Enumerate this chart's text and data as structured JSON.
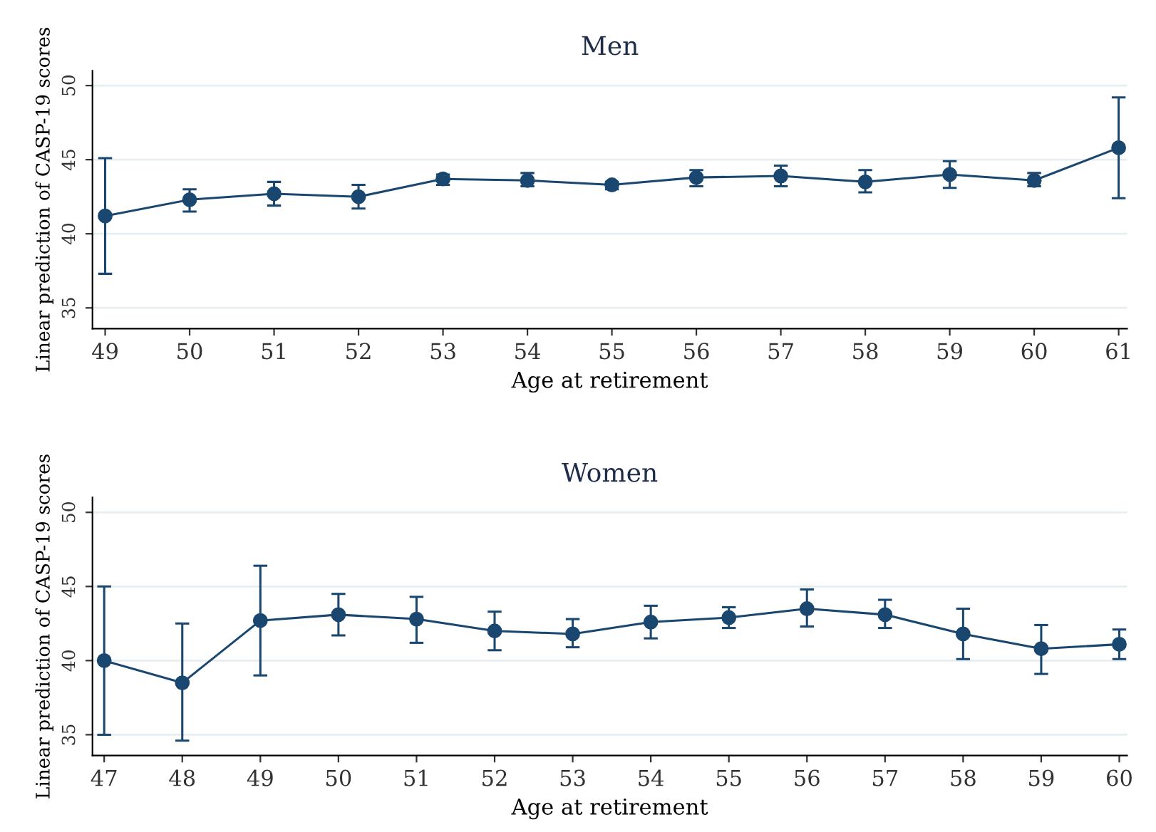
{
  "chart_data": [
    {
      "type": "line",
      "title": "Men",
      "xlabel": "Age at retirement",
      "ylabel": "Linear prediction of CASP-19 scores",
      "x": [
        49,
        50,
        51,
        52,
        53,
        54,
        55,
        56,
        57,
        58,
        59,
        60,
        61
      ],
      "series": [
        {
          "color": "#1a476f",
          "values": [
            41.2,
            42.3,
            42.7,
            42.5,
            43.7,
            43.6,
            43.3,
            43.8,
            43.9,
            43.5,
            44.0,
            43.6,
            45.8
          ],
          "errors": [
            [
              37.3,
              45.1
            ],
            [
              41.5,
              43.0
            ],
            [
              41.9,
              43.5
            ],
            [
              41.7,
              43.3
            ],
            [
              43.3,
              44.0
            ],
            [
              43.2,
              44.1
            ],
            [
              43.0,
              43.5
            ],
            [
              43.2,
              44.3
            ],
            [
              43.2,
              44.6
            ],
            [
              42.8,
              44.3
            ],
            [
              43.1,
              44.9
            ],
            [
              43.2,
              44.1
            ],
            [
              42.4,
              49.2
            ]
          ]
        }
      ],
      "xlim": [
        48.85,
        61.1
      ],
      "xticks": [
        49,
        50,
        51,
        52,
        53,
        54,
        55,
        56,
        57,
        58,
        59,
        60,
        61
      ],
      "ylim": [
        33.6,
        51
      ],
      "yticks": [
        35,
        40,
        45,
        50
      ],
      "grid": "y",
      "marker": "circle",
      "line_style": "solid"
    },
    {
      "type": "line",
      "title": "Women",
      "xlabel": "Age at retirement",
      "ylabel": "Linear prediction of CASP-19 scores",
      "x": [
        47,
        48,
        49,
        50,
        51,
        52,
        53,
        54,
        55,
        56,
        57,
        58,
        59,
        60
      ],
      "series": [
        {
          "color": "#1a476f",
          "values": [
            40.0,
            38.5,
            42.7,
            43.1,
            42.8,
            42.0,
            41.8,
            42.6,
            42.9,
            43.5,
            43.1,
            41.8,
            40.8,
            41.1
          ],
          "errors": [
            [
              35.0,
              45.0
            ],
            [
              34.6,
              42.5
            ],
            [
              39.0,
              46.4
            ],
            [
              41.7,
              44.5
            ],
            [
              41.2,
              44.3
            ],
            [
              40.7,
              43.3
            ],
            [
              40.9,
              42.8
            ],
            [
              41.5,
              43.7
            ],
            [
              42.2,
              43.6
            ],
            [
              42.3,
              44.8
            ],
            [
              42.2,
              44.1
            ],
            [
              40.1,
              43.5
            ],
            [
              39.1,
              42.4
            ],
            [
              40.1,
              42.1
            ]
          ]
        }
      ],
      "xlim": [
        46.85,
        60.1
      ],
      "xticks": [
        47,
        48,
        49,
        50,
        51,
        52,
        53,
        54,
        55,
        56,
        57,
        58,
        59,
        60
      ],
      "ylim": [
        33.6,
        51
      ],
      "yticks": [
        35,
        40,
        45,
        50
      ],
      "grid": "y",
      "marker": "circle",
      "line_style": "solid"
    }
  ]
}
